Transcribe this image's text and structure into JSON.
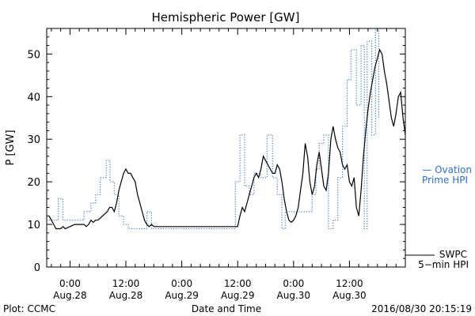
{
  "chart_data": {
    "type": "line",
    "title": "Hemispheric Power [GW]",
    "xlabel": "Date and Time",
    "ylabel": "P [GW]",
    "xlim": [
      -5,
      72
    ],
    "ylim": [
      0,
      56
    ],
    "x_ticks": [
      {
        "x": 0,
        "time": "0:00",
        "date": "Aug.28"
      },
      {
        "x": 12,
        "time": "12:00",
        "date": "Aug.28"
      },
      {
        "x": 24,
        "time": "0:00",
        "date": "Aug.29"
      },
      {
        "x": 36,
        "time": "12:00",
        "date": "Aug.29"
      },
      {
        "x": 48,
        "time": "0:00",
        "date": "Aug.30"
      },
      {
        "x": 60,
        "time": "12:00",
        "date": "Aug.30"
      }
    ],
    "y_ticks": [
      0,
      10,
      20,
      30,
      40,
      50
    ],
    "grid": false,
    "series": [
      {
        "name": "Ovation Prime HPI",
        "legend_line1": "— Ovation",
        "legend_line2": "Prime HPI",
        "color": "#2f6fd0",
        "style": "dotted-step",
        "points": [
          [
            -4.5,
            11
          ],
          [
            -2.5,
            11
          ],
          [
            -2.5,
            16
          ],
          [
            -1.5,
            16
          ],
          [
            -1.5,
            11
          ],
          [
            3,
            11
          ],
          [
            3,
            13
          ],
          [
            4.5,
            13
          ],
          [
            4.5,
            15
          ],
          [
            5.5,
            15
          ],
          [
            5.5,
            17
          ],
          [
            6.5,
            17
          ],
          [
            6.5,
            21
          ],
          [
            7.8,
            21
          ],
          [
            7.8,
            25
          ],
          [
            8.6,
            25
          ],
          [
            8.6,
            20
          ],
          [
            9.5,
            20
          ],
          [
            9.5,
            17
          ],
          [
            10.5,
            17
          ],
          [
            10.5,
            12
          ],
          [
            11.5,
            12
          ],
          [
            11.5,
            10
          ],
          [
            12.5,
            10
          ],
          [
            12.5,
            9
          ],
          [
            16.5,
            9
          ],
          [
            16.5,
            13
          ],
          [
            17.5,
            13
          ],
          [
            17.5,
            9
          ],
          [
            35.5,
            9
          ],
          [
            35.5,
            20
          ],
          [
            36.5,
            20
          ],
          [
            36.5,
            31
          ],
          [
            37.5,
            31
          ],
          [
            37.5,
            19
          ],
          [
            38.5,
            19
          ],
          [
            38.5,
            17
          ],
          [
            39.5,
            17
          ],
          [
            39.5,
            22
          ],
          [
            41,
            22
          ],
          [
            41,
            21
          ],
          [
            42.3,
            21
          ],
          [
            42.3,
            31
          ],
          [
            43.5,
            31
          ],
          [
            43.5,
            21
          ],
          [
            44.5,
            21
          ],
          [
            44.5,
            17
          ],
          [
            45.5,
            17
          ],
          [
            45.5,
            9
          ],
          [
            46.2,
            9
          ],
          [
            46.2,
            13
          ],
          [
            52,
            13
          ],
          [
            52,
            17
          ],
          [
            52.8,
            17
          ],
          [
            52.8,
            23
          ],
          [
            53.5,
            23
          ],
          [
            53.5,
            29
          ],
          [
            54.5,
            29
          ],
          [
            54.5,
            31
          ],
          [
            55.5,
            31
          ],
          [
            55.5,
            9
          ],
          [
            56.5,
            9
          ],
          [
            56.5,
            11
          ],
          [
            57.5,
            11
          ],
          [
            57.5,
            21
          ],
          [
            58.5,
            21
          ],
          [
            58.5,
            33
          ],
          [
            59.5,
            33
          ],
          [
            59.5,
            44
          ],
          [
            60.3,
            44
          ],
          [
            60.3,
            51
          ],
          [
            61.5,
            51
          ],
          [
            61.5,
            38
          ],
          [
            62.5,
            38
          ],
          [
            62.5,
            52
          ],
          [
            63.2,
            52
          ],
          [
            63.2,
            9
          ],
          [
            63.8,
            9
          ],
          [
            63.8,
            53
          ],
          [
            64.8,
            53
          ],
          [
            64.8,
            31
          ],
          [
            65.6,
            31
          ],
          [
            65.6,
            56
          ],
          [
            66.3,
            56
          ],
          [
            66.3,
            35
          ]
        ]
      },
      {
        "name": "SWPC 5-min HPI",
        "legend_line1": "SWPC",
        "legend_line2": "5−min HPI",
        "color": "#000000",
        "style": "solid",
        "points": [
          [
            -4.5,
            12
          ],
          [
            -4,
            11
          ],
          [
            -3.5,
            10
          ],
          [
            -3,
            9
          ],
          [
            -2,
            9
          ],
          [
            -1.5,
            9.5
          ],
          [
            -1,
            9
          ],
          [
            0,
            9.5
          ],
          [
            1,
            10
          ],
          [
            2,
            10
          ],
          [
            3,
            10
          ],
          [
            3.5,
            9.5
          ],
          [
            4,
            10
          ],
          [
            4.5,
            11
          ],
          [
            5,
            10.5
          ],
          [
            5.5,
            11
          ],
          [
            6,
            11
          ],
          [
            7,
            12
          ],
          [
            8,
            13
          ],
          [
            8.5,
            14
          ],
          [
            9,
            14
          ],
          [
            9.5,
            13
          ],
          [
            10,
            15
          ],
          [
            10.5,
            18
          ],
          [
            11,
            20
          ],
          [
            11.5,
            22
          ],
          [
            12,
            23
          ],
          [
            12.5,
            22
          ],
          [
            13,
            22
          ],
          [
            13.5,
            21
          ],
          [
            14,
            20
          ],
          [
            14.5,
            17
          ],
          [
            15,
            15
          ],
          [
            15.5,
            13
          ],
          [
            16,
            11
          ],
          [
            16.5,
            10
          ],
          [
            17,
            9.5
          ],
          [
            17.5,
            10
          ],
          [
            18,
            9.5
          ],
          [
            36,
            9.5
          ],
          [
            36.5,
            12
          ],
          [
            37,
            14
          ],
          [
            37.5,
            13
          ],
          [
            38,
            15
          ],
          [
            38.5,
            17
          ],
          [
            39,
            19
          ],
          [
            39.5,
            21
          ],
          [
            40,
            22
          ],
          [
            40.5,
            21
          ],
          [
            41,
            23
          ],
          [
            41.5,
            26
          ],
          [
            42,
            25
          ],
          [
            42.5,
            24
          ],
          [
            43,
            23
          ],
          [
            43.5,
            22
          ],
          [
            44,
            22
          ],
          [
            44.5,
            24
          ],
          [
            45,
            23
          ],
          [
            45.5,
            20
          ],
          [
            46,
            16
          ],
          [
            46.5,
            13
          ],
          [
            47,
            11
          ],
          [
            47.5,
            10.5
          ],
          [
            48,
            11
          ],
          [
            48.5,
            12
          ],
          [
            49,
            14
          ],
          [
            49.5,
            18
          ],
          [
            50,
            22
          ],
          [
            50.5,
            29
          ],
          [
            51,
            26
          ],
          [
            51.5,
            20
          ],
          [
            52,
            17
          ],
          [
            52.5,
            19
          ],
          [
            53,
            24
          ],
          [
            53.5,
            27
          ],
          [
            54,
            23
          ],
          [
            54.5,
            19
          ],
          [
            55,
            18
          ],
          [
            55.5,
            22
          ],
          [
            56,
            30
          ],
          [
            56.5,
            33
          ],
          [
            57,
            30
          ],
          [
            57.5,
            28
          ],
          [
            58,
            27
          ],
          [
            58.5,
            24
          ],
          [
            59,
            23
          ],
          [
            59.5,
            24
          ],
          [
            60,
            20
          ],
          [
            60.5,
            19
          ],
          [
            61,
            21
          ],
          [
            61.5,
            14
          ],
          [
            62,
            12
          ],
          [
            62.5,
            18
          ],
          [
            63,
            26
          ],
          [
            63.5,
            32
          ],
          [
            64,
            37
          ],
          [
            64.5,
            41
          ],
          [
            65,
            44
          ],
          [
            65.5,
            47
          ],
          [
            66,
            49
          ],
          [
            66.5,
            51
          ],
          [
            67,
            50
          ],
          [
            67.5,
            46
          ],
          [
            68,
            43
          ],
          [
            68.5,
            39
          ],
          [
            69,
            35
          ],
          [
            69.5,
            33
          ],
          [
            70,
            36
          ],
          [
            70.5,
            40
          ],
          [
            71,
            41
          ],
          [
            71.5,
            35
          ],
          [
            72,
            31
          ]
        ]
      }
    ]
  },
  "footer": {
    "left": "Plot: CCMC",
    "right": "2016/08/30 20:15:19"
  }
}
